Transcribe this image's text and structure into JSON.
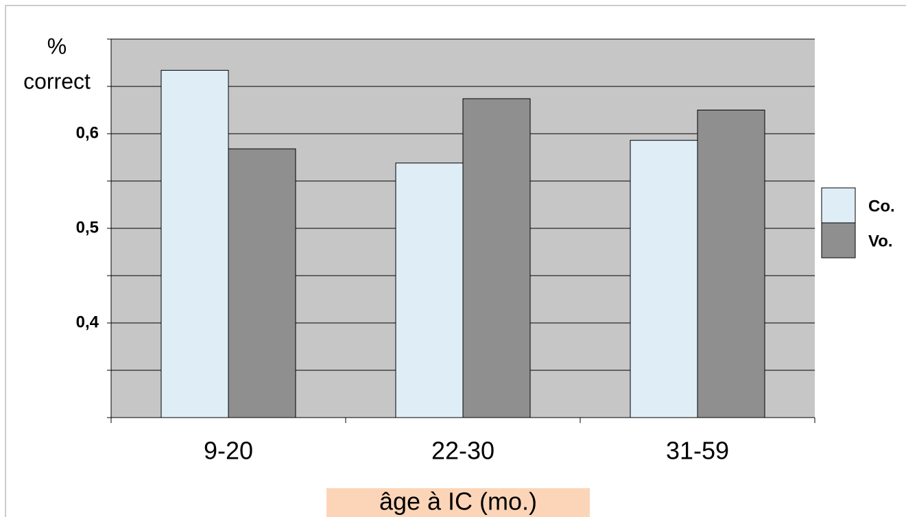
{
  "chart_data": {
    "type": "bar",
    "ylabel": [
      "%",
      "correct"
    ],
    "xlabel": "âge à IC (mo.)",
    "xlabel_background": "#fcd5b8",
    "categories": [
      "9-20",
      "22-30",
      "31-59"
    ],
    "series": [
      {
        "name": "Co.",
        "color": "#dfeef6",
        "values": [
          0.667,
          0.569,
          0.593
        ]
      },
      {
        "name": "Vo.",
        "color": "#8f8f8f",
        "values": [
          0.584,
          0.637,
          0.625
        ]
      }
    ],
    "ylim": [
      0.3,
      0.7
    ],
    "yticks": [
      {
        "value": 0.4,
        "label": "0,4"
      },
      {
        "value": 0.5,
        "label": "0,5"
      },
      {
        "value": 0.6,
        "label": "0,6"
      }
    ],
    "grid_lines": [
      0.3,
      0.35,
      0.4,
      0.45,
      0.5,
      0.55,
      0.6,
      0.65,
      0.7
    ],
    "grid": true,
    "plot_background": "#c6c6c6",
    "legend": "right"
  }
}
